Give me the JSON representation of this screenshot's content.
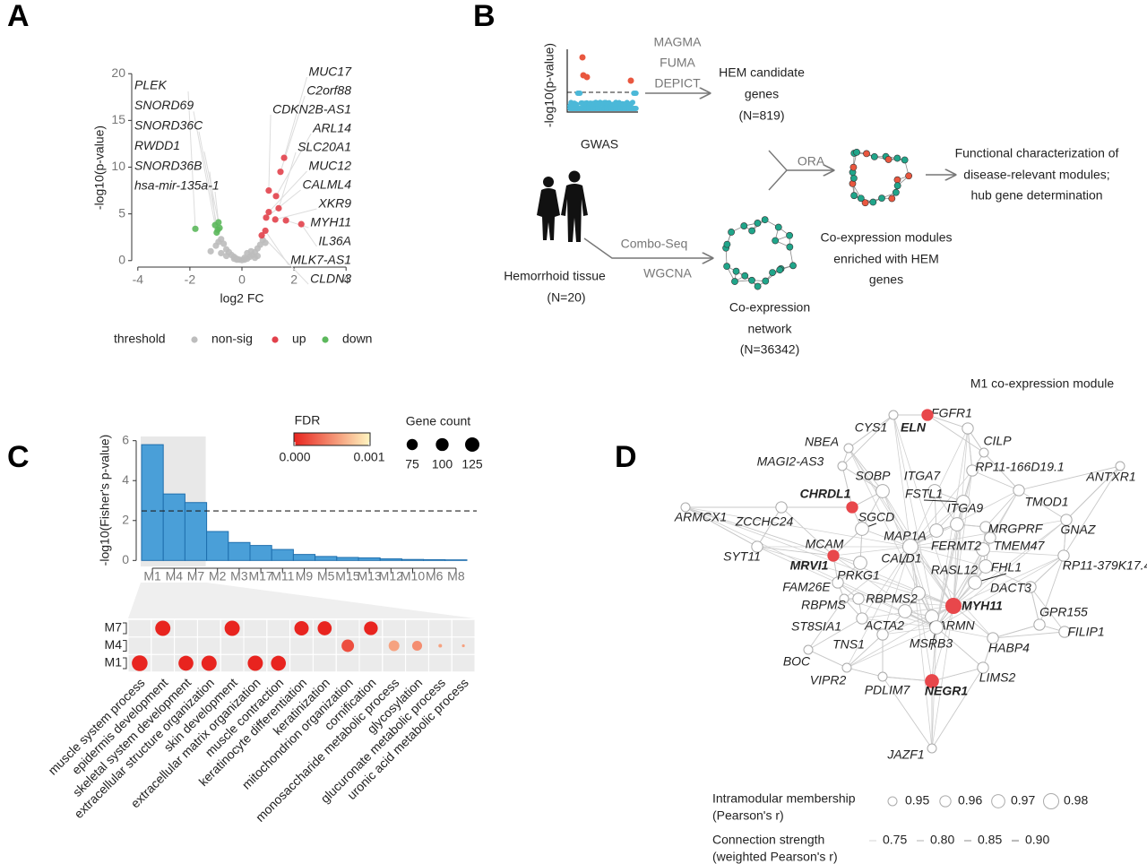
{
  "panel_labels": [
    "A",
    "B",
    "C",
    "D"
  ],
  "chart_data": [
    {
      "type": "scatter",
      "x_label": "log2 FC",
      "y_label": "-log10(p-value)",
      "xlim": [
        -4.2,
        4.2
      ],
      "ylim": [
        -0.5,
        20.5
      ],
      "xticks": [
        -4,
        -2,
        0,
        2,
        4
      ],
      "yticks": [
        0,
        5,
        10,
        15,
        20
      ],
      "legend_title": "threshold",
      "series": [
        {
          "name": "non-sig",
          "color": "#bdbdbd",
          "x": [
            -1.2,
            -1.0,
            -0.9,
            -0.8,
            -0.7,
            -0.6,
            -0.5,
            -0.4,
            -0.3,
            -0.2,
            -0.1,
            0,
            0.1,
            0.2,
            0.3,
            0.4,
            0.5,
            0.6,
            0.7,
            0.8,
            0.9,
            -0.6,
            -0.3,
            0.2,
            0.5,
            -0.8,
            0.6,
            -0.2,
            0.1,
            0.35
          ],
          "values": [
            1.0,
            1.6,
            2.0,
            2.3,
            1.8,
            1.2,
            0.9,
            0.6,
            0.4,
            0.2,
            0.1,
            0.05,
            0.1,
            0.2,
            0.4,
            0.6,
            0.9,
            1.3,
            1.7,
            2.2,
            1.9,
            0.5,
            0.2,
            0.8,
            0.3,
            0.8,
            0.5,
            0.1,
            0.3,
            1.0
          ]
        },
        {
          "name": "up",
          "color": "#e2414b",
          "x": [
            1.62,
            1.48,
            1.03,
            1.31,
            1.41,
            1.03,
            0.93,
            1.28,
            1.69,
            2.28,
            0.9,
            0.76
          ],
          "values": [
            11.0,
            9.5,
            7.5,
            6.9,
            5.6,
            5.2,
            4.6,
            4.4,
            4.3,
            3.9,
            3.2,
            2.7
          ]
        },
        {
          "name": "down",
          "color": "#5cb85c",
          "x": [
            -1.79,
            -1.03,
            -0.93,
            -0.86,
            -0.97,
            -0.9
          ],
          "values": [
            3.4,
            3.8,
            3.3,
            3.5,
            3.0,
            4.1
          ]
        }
      ],
      "labels_left": [
        "PLEK",
        "SNORD69",
        "SNORD36C",
        "RWDD1",
        "SNORD36B",
        "hsa-mir-135a-1"
      ],
      "labels_right": [
        "MUC17",
        "C2orf88",
        "CDKN2B-AS1",
        "ARL14",
        "SLC20A1",
        "MUC12",
        "CALML4",
        "XKR9",
        "MYH11",
        "IL36A",
        "MLK7-AS1",
        "CLDN3"
      ]
    },
    {
      "type": "bar",
      "y_label": "-log10(Fisher's p-value)",
      "categories": [
        "M1",
        "M4",
        "M7",
        "M2",
        "M3",
        "M17",
        "M11",
        "M9",
        "M5",
        "M15",
        "M13",
        "M12",
        "M10",
        "M6",
        "M8"
      ],
      "values": [
        5.8,
        3.33,
        2.9,
        1.45,
        0.9,
        0.75,
        0.55,
        0.3,
        0.2,
        0.15,
        0.13,
        0.08,
        0.05,
        0.04,
        0.03
      ],
      "color": "#4a9fd8",
      "ylim": [
        -0.3,
        6.3
      ],
      "yticks": [
        0,
        2,
        4,
        6
      ],
      "threshold": 2.48
    },
    {
      "type": "dot",
      "categories": [
        "muscle system process",
        "epidermis development",
        "skeletal system development",
        "extracellular structure organization",
        "skin development",
        "extracellular matrix organization",
        "muscle contraction",
        "keratinocyte differentiation",
        "keratinization",
        "mitochondrion organization",
        "cornification",
        "monosaccharide metabolic process",
        "glycosylation",
        "glucuronate metabolic process",
        "uronic acid metabolic process"
      ],
      "series": [
        {
          "name": "M7",
          "values": [
            null,
            0,
            null,
            null,
            0,
            null,
            null,
            0,
            0,
            null,
            0,
            null,
            null,
            null,
            null
          ],
          "sizes": [
            null,
            140,
            null,
            null,
            140,
            null,
            null,
            125,
            120,
            null,
            115,
            null,
            null,
            null,
            null
          ]
        },
        {
          "name": "M4",
          "values": [
            null,
            null,
            null,
            null,
            null,
            null,
            null,
            null,
            null,
            0.0002,
            null,
            0.0006,
            0.0005,
            0.0006,
            0.0006
          ],
          "sizes": [
            null,
            null,
            null,
            null,
            null,
            null,
            null,
            null,
            null,
            95,
            null,
            70,
            60,
            8,
            5
          ]
        },
        {
          "name": "M1",
          "values": [
            0,
            null,
            0,
            0,
            null,
            0,
            0,
            null,
            null,
            null,
            null,
            null,
            null,
            null,
            null
          ],
          "sizes": [
            150,
            null,
            135,
            140,
            null,
            140,
            135,
            null,
            null,
            null,
            null,
            null,
            null,
            null,
            null
          ]
        }
      ],
      "color_title": "FDR",
      "color_range": [
        "#e8241f",
        "#fff6c0"
      ],
      "color_ticks": [
        {
          "value": 0,
          "label": "0.000"
        },
        {
          "value": 0.001,
          "label": "0.001"
        }
      ],
      "size_title": "Gene count",
      "size_ticks": [
        75,
        100,
        125
      ]
    }
  ],
  "diagram": {
    "gwas_axis": "-log10(p-value)",
    "gwas": "GWAS",
    "tools": [
      "MAGMA",
      "FUMA",
      "DEPICT"
    ],
    "candidates": [
      "HEM candidate",
      "genes",
      "(N=819)"
    ],
    "ora": "ORA",
    "outcome": [
      "Functional characterization of",
      "disease-relevant modules;",
      "hub gene determination"
    ],
    "tissue": [
      "Hemorrhoid tissue",
      "(N=20)"
    ],
    "methods": [
      "Combo-Seq",
      "WGCNA"
    ],
    "network": [
      "Co-expression",
      "network",
      "(N=36342)"
    ],
    "modules": [
      "Co-expression modules",
      "enriched with HEM",
      "genes"
    ]
  },
  "network": {
    "title": "M1 co-expression module",
    "nodes": [
      {
        "label": "FGFR1",
        "membership": 0.96,
        "color": "#777777"
      },
      {
        "label": "ELN",
        "membership": 0.96,
        "color": "#e8474b"
      },
      {
        "label": "CYS1",
        "membership": 0.95,
        "color": "#777777"
      },
      {
        "label": "CILP",
        "membership": 0.95,
        "color": "#777777"
      },
      {
        "label": "NBEA",
        "membership": 0.95,
        "color": "#777777"
      },
      {
        "label": "MAGI2-AS3",
        "membership": 0.95,
        "color": "#777777"
      },
      {
        "label": "RP11-166D19.1",
        "membership": 0.96,
        "color": "#777777"
      },
      {
        "label": "ANTXR1",
        "membership": 0.95,
        "color": "#777777"
      },
      {
        "label": "SOBP",
        "membership": 0.97,
        "color": "#777777"
      },
      {
        "label": "ITGA7",
        "membership": 0.97,
        "color": "#777777"
      },
      {
        "label": "TMOD1",
        "membership": 0.96,
        "color": "#777777"
      },
      {
        "label": "CHRDL1",
        "membership": 0.96,
        "color": "#e8474b"
      },
      {
        "label": "FSTL1",
        "membership": 0.97,
        "color": "#222222"
      },
      {
        "label": "ZCCHC24",
        "membership": 0.96,
        "color": "#777777"
      },
      {
        "label": "ARMCX1",
        "membership": 0.95,
        "color": "#777777"
      },
      {
        "label": "SGCD",
        "membership": 0.97,
        "color": "#222222"
      },
      {
        "label": "ITGA9",
        "membership": 0.97,
        "color": "#777777"
      },
      {
        "label": "MRGPRF",
        "membership": 0.96,
        "color": "#777777"
      },
      {
        "label": "GNAZ",
        "membership": 0.96,
        "color": "#777777"
      },
      {
        "label": "MAP1A",
        "membership": 0.97,
        "color": "#777777"
      },
      {
        "label": "FERMT2",
        "membership": 0.97,
        "color": "#777777"
      },
      {
        "label": "TMEM47",
        "membership": 0.96,
        "color": "#777777"
      },
      {
        "label": "SYT11",
        "membership": 0.96,
        "color": "#777777"
      },
      {
        "label": "MCAM",
        "membership": 0.97,
        "color": "#777777"
      },
      {
        "label": "MRVI1",
        "membership": 0.96,
        "color": "#e8474b"
      },
      {
        "label": "CALD1",
        "membership": 0.98,
        "color": "#222222"
      },
      {
        "label": "RASL12",
        "membership": 0.97,
        "color": "#777777"
      },
      {
        "label": "FHL1",
        "membership": 0.97,
        "color": "#222222"
      },
      {
        "label": "RP11-379K17.4",
        "membership": 0.96,
        "color": "#777777"
      },
      {
        "label": "PRKG1",
        "membership": 0.96,
        "color": "#777777"
      },
      {
        "label": "FAM26E",
        "membership": 0.95,
        "color": "#777777"
      },
      {
        "label": "DACT3",
        "membership": 0.96,
        "color": "#777777"
      },
      {
        "label": "RBPMS2",
        "membership": 0.97,
        "color": "#777777"
      },
      {
        "label": "RBPMS",
        "membership": 0.96,
        "color": "#777777"
      },
      {
        "label": "MYH11",
        "membership": 0.98,
        "color": "#e8474b"
      },
      {
        "label": "GPR155",
        "membership": 0.96,
        "color": "#777777"
      },
      {
        "label": "ST8SIA1",
        "membership": 0.96,
        "color": "#777777"
      },
      {
        "label": "ACTA2",
        "membership": 0.97,
        "color": "#777777"
      },
      {
        "label": "CARMN",
        "membership": 0.97,
        "color": "#777777"
      },
      {
        "label": "FILIP1",
        "membership": 0.96,
        "color": "#777777"
      },
      {
        "label": "TNS1",
        "membership": 0.96,
        "color": "#777777"
      },
      {
        "label": "MSRB3",
        "membership": 0.97,
        "color": "#222222"
      },
      {
        "label": "HABP4",
        "membership": 0.96,
        "color": "#777777"
      },
      {
        "label": "BOC",
        "membership": 0.95,
        "color": "#777777"
      },
      {
        "label": "VIPR2",
        "membership": 0.95,
        "color": "#777777"
      },
      {
        "label": "PDLIM7",
        "membership": 0.95,
        "color": "#777777"
      },
      {
        "label": "NEGR1",
        "membership": 0.97,
        "color": "#e8474b"
      },
      {
        "label": "LIMS2",
        "membership": 0.96,
        "color": "#777777"
      },
      {
        "label": "JAZF1",
        "membership": 0.95,
        "color": "#777777"
      }
    ],
    "membership_title": [
      "Intramodular membership",
      "(Pearson's r)"
    ],
    "membership_ticks": [
      0.95,
      0.96,
      0.97,
      0.98
    ],
    "strength_title": [
      "Connection strength",
      "(weighted Pearson's r)"
    ],
    "strength_ticks": [
      0.75,
      {
        "value": 0.8,
        "label": "0.80"
      },
      0.85,
      {
        "value": 0.9,
        "label": "0.90"
      }
    ]
  }
}
